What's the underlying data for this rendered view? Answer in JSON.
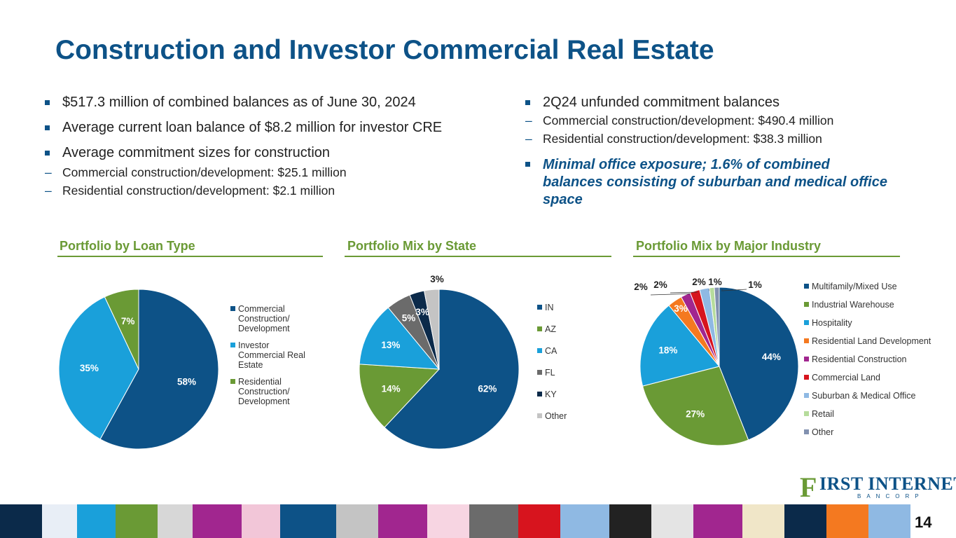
{
  "title": "Construction and Investor Commercial Real Estate",
  "left_bullets": [
    {
      "text": "$517.3 million of combined balances as of June 30, 2024",
      "subs": []
    },
    {
      "text": "Average current loan balance of $8.2 million for investor CRE",
      "subs": []
    },
    {
      "text": "Average commitment sizes for construction",
      "subs": [
        "Commercial construction/development: $25.1 million",
        "Residential construction/development: $2.1 million"
      ]
    }
  ],
  "right_bullets": {
    "main": "2Q24 unfunded commitment balances",
    "subs": [
      "Commercial construction/development: $490.4 million",
      "Residential construction/development: $38.3 million"
    ],
    "highlight": "Minimal office exposure; 1.6% of combined balances consisting of suburban and medical office space"
  },
  "logo": {
    "initial": "F",
    "text": "IRST INTERNET",
    "sub": "BANCORP"
  },
  "page_number": "14",
  "chart_data": [
    {
      "type": "pie",
      "title": "Portfolio by Loan Type",
      "legend_position": "right",
      "labels": [
        "Commercial Construction/ Development",
        "Investor Commercial Real Estate",
        "Residential Construction/ Development"
      ],
      "values": [
        58,
        35,
        7
      ],
      "data_labels": [
        "58%",
        "35%",
        "7%"
      ],
      "colors": [
        "#0d5287",
        "#1aa0da",
        "#6a9a35"
      ]
    },
    {
      "type": "pie",
      "title": "Portfolio Mix by State",
      "legend_position": "right",
      "labels": [
        "IN",
        "AZ",
        "CA",
        "FL",
        "KY",
        "Other"
      ],
      "values": [
        62,
        14,
        13,
        5,
        3,
        3
      ],
      "data_labels": [
        "62%",
        "14%",
        "13%",
        "5%",
        "3%",
        "3%"
      ],
      "colors": [
        "#0d5287",
        "#6a9a35",
        "#1aa0da",
        "#6b6b6b",
        "#0b2a4a",
        "#c4c4c4"
      ]
    },
    {
      "type": "pie",
      "title": "Portfolio Mix by Major Industry",
      "legend_position": "right",
      "labels": [
        "Multifamily/Mixed Use",
        "Industrial Warehouse",
        "Hospitality",
        "Residential Land Development",
        "Residential Construction",
        "Commercial Land",
        "Suburban & Medical Office",
        "Retail",
        "Other"
      ],
      "values": [
        44,
        27,
        18,
        3,
        2,
        2,
        2,
        1,
        1
      ],
      "data_labels": [
        "44%",
        "27%",
        "18%",
        "3%",
        "2%",
        "2%",
        "2%",
        "1%",
        "1%"
      ],
      "colors": [
        "#0d5287",
        "#6a9a35",
        "#1aa0da",
        "#f47920",
        "#a1268f",
        "#d7141e",
        "#8fb9e3",
        "#b6dc9c",
        "#8291b0"
      ]
    }
  ]
}
